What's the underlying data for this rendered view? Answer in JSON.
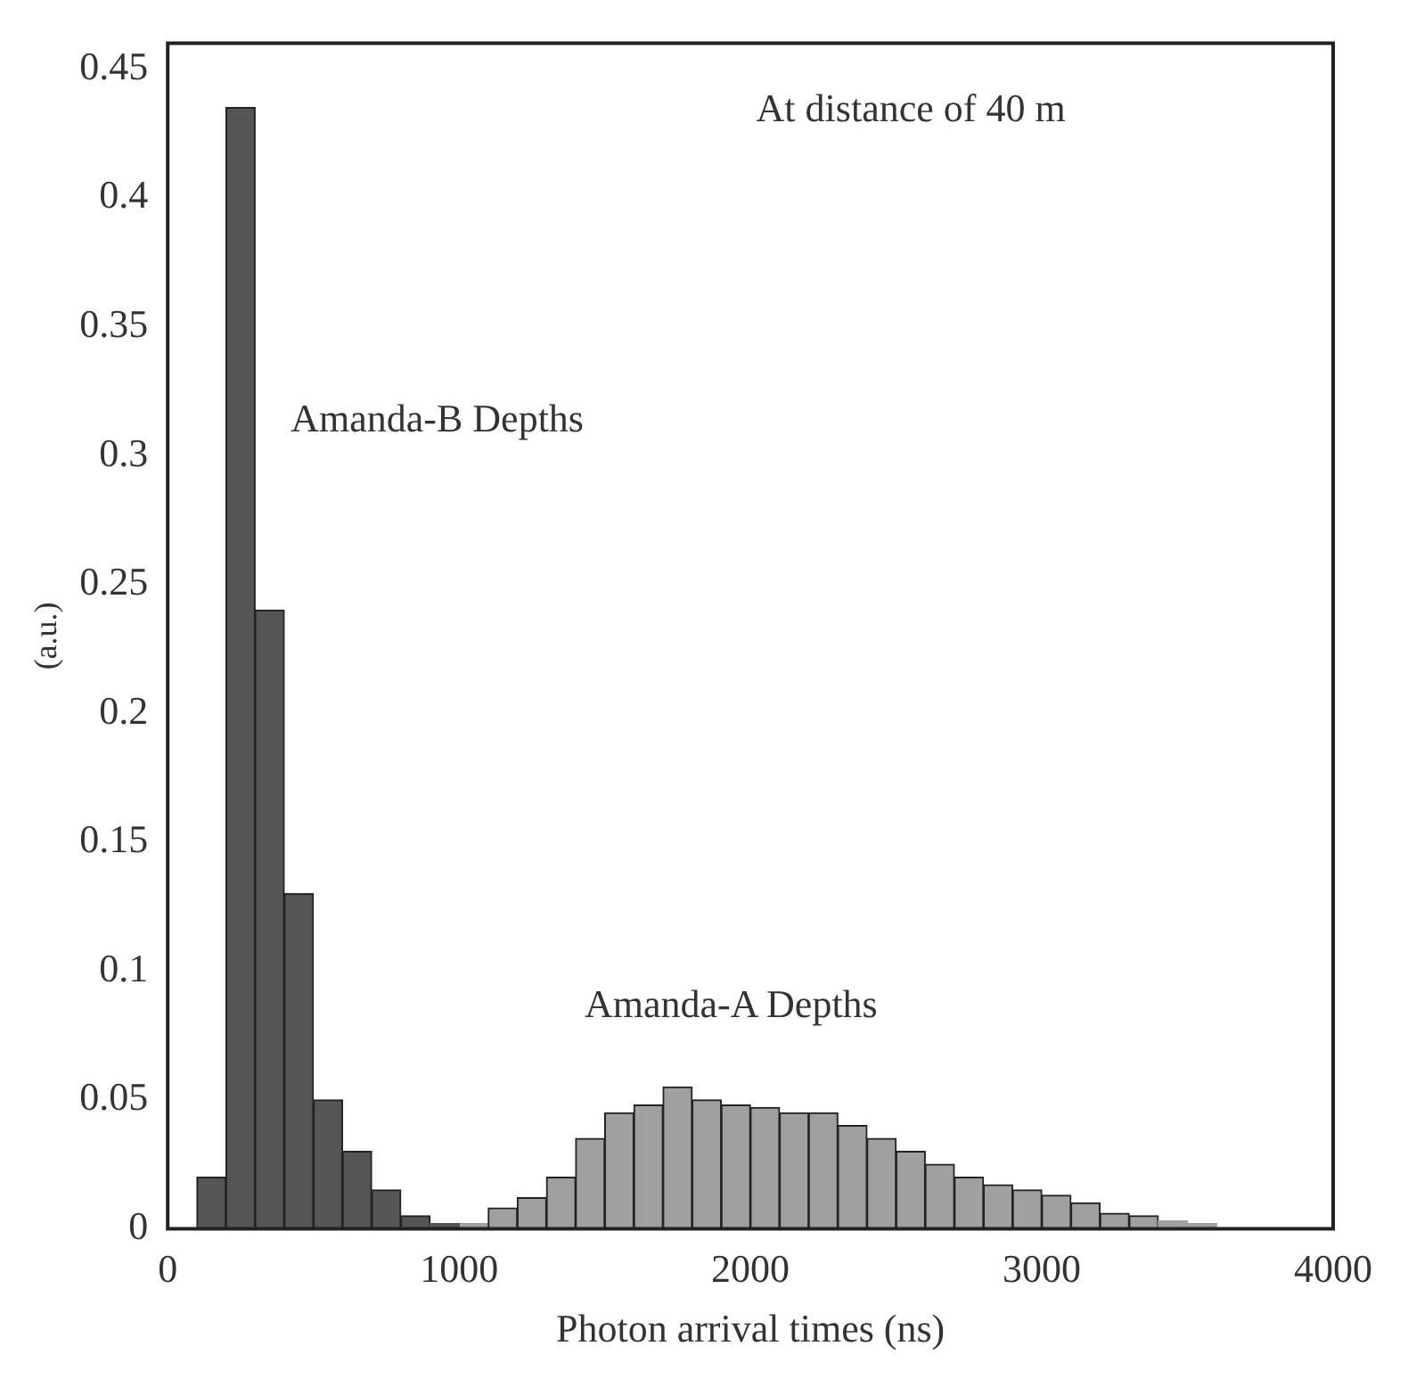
{
  "chart_data": {
    "type": "histogram",
    "bins": [
      0,
      100,
      200,
      300,
      400,
      500,
      600,
      700,
      800,
      900,
      1000,
      1100,
      1200,
      1300,
      1400,
      1500,
      1600,
      1700,
      1800,
      1900,
      2000,
      2100,
      2200,
      2300,
      2400,
      2500,
      2600,
      2700,
      2800,
      2900,
      3000,
      3100,
      3200,
      3300,
      3400,
      3500,
      3600,
      3700,
      3800,
      3900,
      4000
    ],
    "series": [
      {
        "name": "Amanda-B Depths",
        "color": "#555555",
        "values": [
          0,
          0.02,
          0.435,
          0.24,
          0.13,
          0.05,
          0.03,
          0.015,
          0.005,
          0.002,
          0,
          0,
          0,
          0,
          0,
          0,
          0,
          0,
          0,
          0,
          0,
          0,
          0,
          0,
          0,
          0,
          0,
          0,
          0,
          0,
          0,
          0,
          0,
          0,
          0,
          0,
          0,
          0,
          0,
          0
        ]
      },
      {
        "name": "Amanda-A Depths",
        "color": "#a0a0a0",
        "values": [
          0,
          0,
          0,
          0,
          0,
          0,
          0,
          0,
          0,
          0,
          0.002,
          0.008,
          0.012,
          0.02,
          0.035,
          0.045,
          0.048,
          0.055,
          0.05,
          0.048,
          0.047,
          0.045,
          0.045,
          0.04,
          0.035,
          0.03,
          0.025,
          0.02,
          0.017,
          0.015,
          0.013,
          0.01,
          0.006,
          0.005,
          0.003,
          0.002,
          null,
          null,
          null,
          null
        ]
      }
    ],
    "xlabel": "Photon arrival times (ns)",
    "ylabel": "(a.u.)",
    "annotations": [
      "At distance of 40 m"
    ],
    "xlim": [
      0,
      4000
    ],
    "xticks": [
      0,
      1000,
      2000,
      3000,
      4000
    ],
    "ylim": [
      0,
      0.46
    ],
    "yticks": [
      0,
      0.05,
      0.1,
      0.15,
      0.2,
      0.25,
      0.3,
      0.35,
      0.4,
      0.45
    ],
    "grid": false,
    "legend": false
  }
}
